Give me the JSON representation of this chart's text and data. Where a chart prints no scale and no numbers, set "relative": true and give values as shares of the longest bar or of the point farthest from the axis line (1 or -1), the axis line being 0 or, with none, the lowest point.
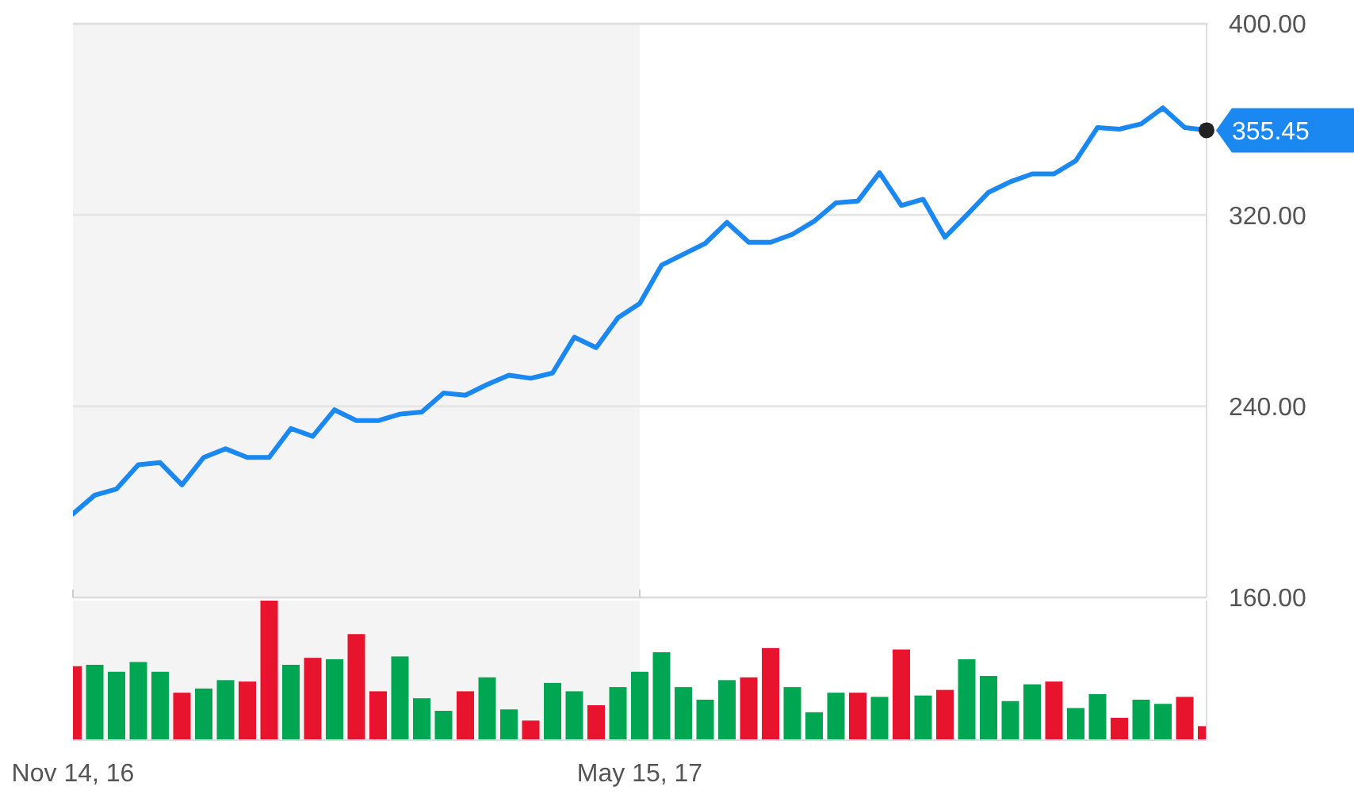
{
  "chart_data": [
    {
      "type": "line",
      "x": [
        "2016-11-14",
        "2016-11-21",
        "2016-11-28",
        "2016-12-05",
        "2016-12-12",
        "2016-12-19",
        "2016-12-26",
        "2017-01-02",
        "2017-01-09",
        "2017-01-16",
        "2017-01-23",
        "2017-01-30",
        "2017-02-06",
        "2017-02-13",
        "2017-02-20",
        "2017-02-27",
        "2017-03-06",
        "2017-03-13",
        "2017-03-20",
        "2017-03-27",
        "2017-04-03",
        "2017-04-10",
        "2017-04-17",
        "2017-04-24",
        "2017-05-01",
        "2017-05-08",
        "2017-05-15",
        "2017-05-22",
        "2017-05-29",
        "2017-06-05",
        "2017-06-12",
        "2017-06-19",
        "2017-06-26",
        "2017-07-03",
        "2017-07-10",
        "2017-07-17",
        "2017-07-24",
        "2017-07-31",
        "2017-08-07",
        "2017-08-14",
        "2017-08-21",
        "2017-08-28",
        "2017-09-04",
        "2017-09-11",
        "2017-09-18",
        "2017-09-25",
        "2017-10-02",
        "2017-10-09",
        "2017-10-16",
        "2017-10-23",
        "2017-10-30",
        "2017-11-06",
        "2017-11-13"
      ],
      "series": [
        {
          "color": "#1a88f0",
          "values": [
            195.0,
            202.8,
            205.4,
            215.5,
            216.4,
            207.1,
            218.6,
            222.2,
            218.6,
            218.6,
            230.7,
            227.4,
            238.5,
            234.0,
            234.0,
            236.7,
            237.6,
            245.5,
            244.6,
            249.1,
            253.0,
            251.7,
            253.9,
            268.9,
            264.5,
            277.0,
            283.0,
            299.0,
            303.6,
            308.1,
            316.9,
            308.6,
            308.6,
            311.9,
            317.4,
            325.1,
            325.8,
            337.7,
            324.0,
            326.6,
            310.7,
            320.0,
            329.5,
            333.9,
            337.2,
            337.2,
            342.7,
            356.6,
            355.9,
            358.1,
            364.8,
            356.6,
            355.45
          ]
        }
      ],
      "xlim": [
        "2016-11-14",
        "2017-11-13"
      ],
      "ylim": [
        160,
        400
      ],
      "yticks": [
        {
          "value": 160,
          "label": "160.00"
        },
        {
          "value": 240,
          "label": "240.00"
        },
        {
          "value": 320,
          "label": "320.00"
        },
        {
          "value": 400,
          "label": "400.00"
        }
      ],
      "xticks": [
        {
          "value": "2016-11-14",
          "label": null
        },
        {
          "value": "2017-05-15",
          "label": null
        }
      ],
      "grid": "y",
      "tick_labels": "y",
      "bands": [
        {
          "axis": "x",
          "from": "2016-11-14",
          "to": "2017-05-15",
          "color": "#f4f4f4"
        }
      ],
      "annotations": [
        {
          "text": "355.45",
          "x": "2017-11-13",
          "y": 355.45
        }
      ]
    },
    {
      "type": "bar",
      "relative": true,
      "x": [
        "2016-11-14",
        "2016-11-21",
        "2016-11-28",
        "2016-12-05",
        "2016-12-12",
        "2016-12-19",
        "2016-12-26",
        "2017-01-02",
        "2017-01-09",
        "2017-01-16",
        "2017-01-23",
        "2017-01-30",
        "2017-02-06",
        "2017-02-13",
        "2017-02-20",
        "2017-02-27",
        "2017-03-06",
        "2017-03-13",
        "2017-03-20",
        "2017-03-27",
        "2017-04-03",
        "2017-04-10",
        "2017-04-17",
        "2017-04-24",
        "2017-05-01",
        "2017-05-08",
        "2017-05-15",
        "2017-05-22",
        "2017-05-29",
        "2017-06-05",
        "2017-06-12",
        "2017-06-19",
        "2017-06-26",
        "2017-07-03",
        "2017-07-10",
        "2017-07-17",
        "2017-07-24",
        "2017-07-31",
        "2017-08-07",
        "2017-08-14",
        "2017-08-21",
        "2017-08-28",
        "2017-09-04",
        "2017-09-11",
        "2017-09-18",
        "2017-09-25",
        "2017-10-02",
        "2017-10-09",
        "2017-10-16",
        "2017-10-23",
        "2017-10-30",
        "2017-11-06",
        "2017-11-13"
      ],
      "values": [
        0.53,
        0.54,
        0.49,
        0.56,
        0.49,
        0.34,
        0.37,
        0.43,
        0.42,
        1,
        0.54,
        0.59,
        0.58,
        0.76,
        0.35,
        0.6,
        0.3,
        0.21,
        0.35,
        0.45,
        0.22,
        0.14,
        0.41,
        0.35,
        0.25,
        0.38,
        0.49,
        0.63,
        0.38,
        0.29,
        0.43,
        0.45,
        0.66,
        0.38,
        0.2,
        0.34,
        0.34,
        0.31,
        0.65,
        0.32,
        0.36,
        0.58,
        0.46,
        0.28,
        0.4,
        0.42,
        0.23,
        0.33,
        0.16,
        0.29,
        0.26,
        0.31,
        0.1
      ],
      "colors": [
        "#e8142e",
        "#00a651",
        "#00a651",
        "#00a651",
        "#00a651",
        "#e8142e",
        "#00a651",
        "#00a651",
        "#e8142e",
        "#e8142e",
        "#00a651",
        "#e8142e",
        "#00a651",
        "#e8142e",
        "#e8142e",
        "#00a651",
        "#00a651",
        "#00a651",
        "#e8142e",
        "#00a651",
        "#00a651",
        "#e8142e",
        "#00a651",
        "#00a651",
        "#e8142e",
        "#00a651",
        "#00a651",
        "#00a651",
        "#00a651",
        "#00a651",
        "#00a651",
        "#e8142e",
        "#e8142e",
        "#00a651",
        "#00a651",
        "#00a651",
        "#e8142e",
        "#00a651",
        "#e8142e",
        "#00a651",
        "#e8142e",
        "#00a651",
        "#00a651",
        "#00a651",
        "#00a651",
        "#e8142e",
        "#00a651",
        "#00a651",
        "#e8142e",
        "#00a651",
        "#00a651",
        "#e8142e",
        "#e8142e"
      ],
      "xlim": [
        "2016-11-14",
        "2017-11-13"
      ],
      "xticks": [
        {
          "value": "2016-11-14",
          "label": "Nov 14, 16"
        },
        {
          "value": "2017-05-15",
          "label": "May 15, 17"
        }
      ],
      "tick_labels": "x",
      "bands": [
        {
          "axis": "x",
          "from": "2016-11-14",
          "to": "2017-05-15",
          "color": "#f4f4f4"
        }
      ]
    }
  ]
}
